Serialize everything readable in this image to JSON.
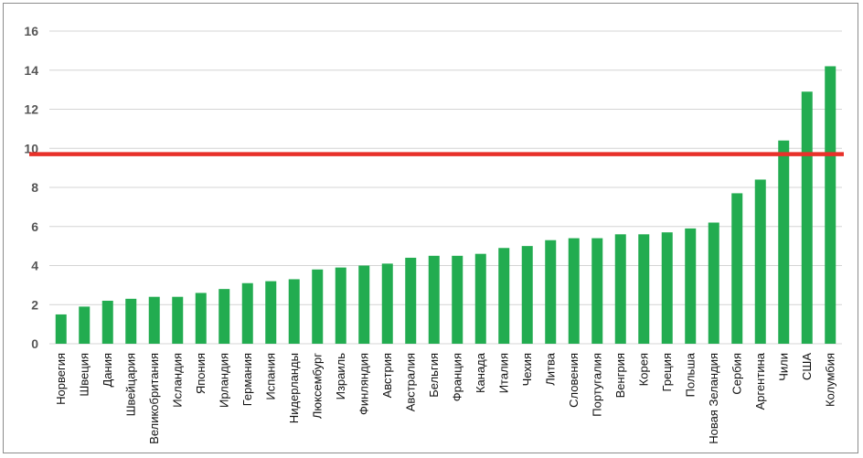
{
  "chart_data": {
    "type": "bar",
    "categories": [
      "Норвегия",
      "Швеция",
      "Дания",
      "Швейцария",
      "Великобритания",
      "Исландия",
      "Япония",
      "Ирландия",
      "Германия",
      "Испания",
      "Нидерланды",
      "Люксембург",
      "Израиль",
      "Финляндия",
      "Австрия",
      "Австралия",
      "Бельгия",
      "Франция",
      "Канада",
      "Италия",
      "Чехия",
      "Литва",
      "Словения",
      "Португалия",
      "Венгрия",
      "Корея",
      "Греция",
      "Польша",
      "Новая Зеландия",
      "Сербия",
      "Аргентина",
      "Чили",
      "США",
      "Колумбия"
    ],
    "values": [
      1.5,
      1.9,
      2.2,
      2.3,
      2.4,
      2.4,
      2.6,
      2.8,
      3.1,
      3.2,
      3.3,
      3.8,
      3.9,
      4.0,
      4.1,
      4.4,
      4.5,
      4.5,
      4.6,
      4.9,
      5.0,
      5.3,
      5.4,
      5.4,
      5.6,
      5.6,
      5.7,
      5.9,
      6.2,
      7.7,
      8.4,
      10.4,
      12.9,
      14.2
    ],
    "yticks": [
      "0",
      "2",
      "4",
      "6",
      "8",
      "10",
      "12",
      "14",
      "16"
    ],
    "ylim": [
      0,
      16
    ],
    "reference_line": 9.7,
    "grid": true,
    "colors": {
      "bar": "#22ac50",
      "reference_line": "#e8312a",
      "grid": "#d4d4d4"
    }
  }
}
